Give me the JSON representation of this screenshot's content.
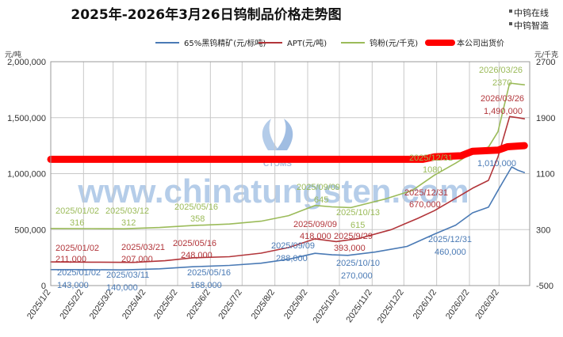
{
  "title": "2025年-2026年3月26日钨制品价格走势图",
  "brand": {
    "line1": "中钨在线",
    "line2": "中钨智造"
  },
  "watermark": "www.chinatungsten.com",
  "logo_text": "CTOMS",
  "left_unit": "元/吨",
  "right_unit": "元/千克",
  "colors": {
    "ore": "#4a7ab5",
    "apt": "#b2353a",
    "powder": "#9bbb59",
    "quote": "#ff0000",
    "grid": "#c8c8c8"
  },
  "legend": [
    {
      "label": "65%黑钨精矿(元/标吨)",
      "color": "#4a7ab5",
      "kind": "line"
    },
    {
      "label": "APT(元/吨)",
      "color": "#b2353a",
      "kind": "line"
    },
    {
      "label": "钨粉(元/千克)",
      "color": "#9bbb59",
      "kind": "line"
    },
    {
      "label": "本公司出货价",
      "color": "#ff0000",
      "kind": "thick"
    }
  ],
  "chart_data": {
    "type": "line",
    "title": "2025年-2026年3月26日钨制品价格走势图",
    "x_ticks": [
      "2025/1/2",
      "2025/2/2",
      "2025/3/2",
      "2025/4/2",
      "2025/5/2",
      "2025/6/2",
      "2025/7/2",
      "2025/8/2",
      "2025/9/2",
      "2025/10/2",
      "2025/11/2",
      "2025/12/2",
      "2026/1/2",
      "2026/2/2",
      "2026/3/2"
    ],
    "x_range": [
      "2025/1/2",
      "2026/3/31"
    ],
    "y_left": {
      "unit": "元/吨",
      "range": [
        0,
        2000000
      ],
      "ticks": [
        "0",
        "500,000",
        "1,000,000",
        "1,500,000",
        "2,000,000"
      ],
      "tick_values": [
        0,
        500000,
        1000000,
        1500000,
        2000000
      ]
    },
    "y_right": {
      "unit": "元/千克",
      "range": [
        -500,
        2700
      ],
      "ticks": [
        "-500",
        "300",
        "1100",
        "1900",
        "2700"
      ],
      "tick_values": [
        -500,
        300,
        1100,
        1900,
        2700
      ]
    },
    "grid": true,
    "legend_position": "top",
    "series": [
      {
        "name": "65%黑钨精矿(元/标吨)",
        "axis": "left",
        "color": "#4a7ab5",
        "points": [
          [
            "2025/1/2",
            143000
          ],
          [
            "2025/2/10",
            142000
          ],
          [
            "2025/3/11",
            140000
          ],
          [
            "2025/4/15",
            150000
          ],
          [
            "2025/5/16",
            168000
          ],
          [
            "2025/6/20",
            180000
          ],
          [
            "2025/7/20",
            200000
          ],
          [
            "2025/8/15",
            235000
          ],
          [
            "2025/9/9",
            288000
          ],
          [
            "2025/9/25",
            275000
          ],
          [
            "2025/10/10",
            270000
          ],
          [
            "2025/11/5",
            300000
          ],
          [
            "2025/12/5",
            350000
          ],
          [
            "2025/12/31",
            460000
          ],
          [
            "2026/1/20",
            540000
          ],
          [
            "2026/2/5",
            650000
          ],
          [
            "2026/2/20",
            700000
          ],
          [
            "2026/3/1",
            850000
          ],
          [
            "2026/3/14",
            1060000
          ],
          [
            "2026/3/20",
            1030000
          ],
          [
            "2026/3/26",
            1010000
          ]
        ]
      },
      {
        "name": "APT(元/吨)",
        "axis": "left",
        "color": "#b2353a",
        "points": [
          [
            "2025/1/2",
            211000
          ],
          [
            "2025/2/10",
            209000
          ],
          [
            "2025/3/21",
            207000
          ],
          [
            "2025/4/20",
            222000
          ],
          [
            "2025/5/16",
            248000
          ],
          [
            "2025/6/20",
            258000
          ],
          [
            "2025/7/20",
            290000
          ],
          [
            "2025/8/15",
            340000
          ],
          [
            "2025/9/9",
            418000
          ],
          [
            "2025/9/29",
            393000
          ],
          [
            "2025/10/20",
            420000
          ],
          [
            "2025/11/20",
            500000
          ],
          [
            "2025/12/15",
            600000
          ],
          [
            "2025/12/31",
            670000
          ],
          [
            "2026/1/20",
            780000
          ],
          [
            "2026/2/5",
            870000
          ],
          [
            "2026/2/20",
            940000
          ],
          [
            "2026/3/1",
            1150000
          ],
          [
            "2026/3/12",
            1510000
          ],
          [
            "2026/3/20",
            1500000
          ],
          [
            "2026/3/26",
            1490000
          ]
        ]
      },
      {
        "name": "钨粉(元/千克)",
        "axis": "right",
        "color": "#9bbb59",
        "points": [
          [
            "2025/1/2",
            316
          ],
          [
            "2025/2/10",
            314
          ],
          [
            "2025/3/12",
            312
          ],
          [
            "2025/4/15",
            330
          ],
          [
            "2025/5/16",
            358
          ],
          [
            "2025/6/20",
            380
          ],
          [
            "2025/7/20",
            420
          ],
          [
            "2025/8/15",
            500
          ],
          [
            "2025/9/9",
            645
          ],
          [
            "2025/9/25",
            625
          ],
          [
            "2025/10/13",
            615
          ],
          [
            "2025/11/15",
            740
          ],
          [
            "2025/12/10",
            860
          ],
          [
            "2025/12/31",
            1080
          ],
          [
            "2026/1/20",
            1250
          ],
          [
            "2026/2/5",
            1400
          ],
          [
            "2026/2/20",
            1480
          ],
          [
            "2026/3/1",
            1700
          ],
          [
            "2026/3/12",
            2395
          ],
          [
            "2026/3/20",
            2380
          ],
          [
            "2026/3/26",
            2370
          ]
        ]
      },
      {
        "name": "本公司出货价",
        "axis": "left",
        "color": "#ff0000",
        "points": [
          [
            "2025/1/2",
            1128000
          ],
          [
            "2025/12/20",
            1128000
          ],
          [
            "2025/12/31",
            1150000
          ],
          [
            "2026/1/25",
            1160000
          ],
          [
            "2026/2/5",
            1200000
          ],
          [
            "2026/3/1",
            1210000
          ],
          [
            "2026/3/10",
            1240000
          ],
          [
            "2026/3/26",
            1250000
          ]
        ]
      }
    ],
    "annotations": [
      {
        "text": "2025/01/02",
        "color": "#4a7ab5"
      },
      {
        "text": "143,000",
        "color": "#4a7ab5"
      },
      {
        "text": "2025/03/11",
        "color": "#4a7ab5"
      },
      {
        "text": "140,000",
        "color": "#4a7ab5"
      },
      {
        "text": "2025/05/16",
        "color": "#4a7ab5"
      },
      {
        "text": "168,000",
        "color": "#4a7ab5"
      },
      {
        "text": "2025/09/09",
        "color": "#4a7ab5"
      },
      {
        "text": "288,000",
        "color": "#4a7ab5"
      },
      {
        "text": "2025/10/10",
        "color": "#4a7ab5"
      },
      {
        "text": "270,000",
        "color": "#4a7ab5"
      },
      {
        "text": "2025/12/31",
        "color": "#4a7ab5"
      },
      {
        "text": "460,000",
        "color": "#4a7ab5"
      },
      {
        "text": "1,010,000",
        "color": "#4a7ab5"
      },
      {
        "text": "2025/01/02",
        "color": "#b2353a"
      },
      {
        "text": "211,000",
        "color": "#b2353a"
      },
      {
        "text": "2025/03/21",
        "color": "#b2353a"
      },
      {
        "text": "207,000",
        "color": "#b2353a"
      },
      {
        "text": "2025/05/16",
        "color": "#b2353a"
      },
      {
        "text": "248,000",
        "color": "#b2353a"
      },
      {
        "text": "2025/09/09",
        "color": "#b2353a"
      },
      {
        "text": "418,000",
        "color": "#b2353a"
      },
      {
        "text": "2025/9/29",
        "color": "#b2353a"
      },
      {
        "text": "393,000",
        "color": "#b2353a"
      },
      {
        "text": "2025/12/31",
        "color": "#b2353a"
      },
      {
        "text": "670,000",
        "color": "#b2353a"
      },
      {
        "text": "2026/03/26",
        "color": "#b2353a"
      },
      {
        "text": "1,490,000",
        "color": "#b2353a"
      },
      {
        "text": "2025/01/02",
        "color": "#9bbb59"
      },
      {
        "text": "316",
        "color": "#9bbb59"
      },
      {
        "text": "2025/03/12",
        "color": "#9bbb59"
      },
      {
        "text": "312",
        "color": "#9bbb59"
      },
      {
        "text": "2025/05/16",
        "color": "#9bbb59"
      },
      {
        "text": "358",
        "color": "#9bbb59"
      },
      {
        "text": "2025/09/09",
        "color": "#9bbb59"
      },
      {
        "text": "645",
        "color": "#9bbb59"
      },
      {
        "text": "2025/10/13",
        "color": "#9bbb59"
      },
      {
        "text": "615",
        "color": "#9bbb59"
      },
      {
        "text": "2025/12/31",
        "color": "#9bbb59"
      },
      {
        "text": "1080",
        "color": "#9bbb59"
      },
      {
        "text": "2026/03/26",
        "color": "#9bbb59"
      },
      {
        "text": "2370",
        "color": "#9bbb59"
      }
    ]
  }
}
